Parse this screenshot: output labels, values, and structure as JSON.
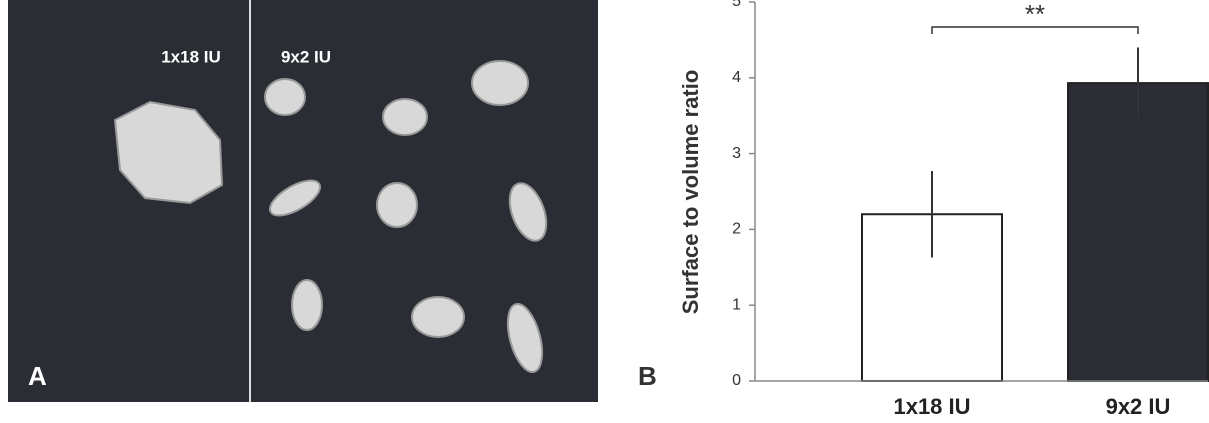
{
  "image_panel": {
    "panel_label": "A",
    "left_label": "1x18 IU",
    "right_label": "9x2 IU"
  },
  "chart_data": {
    "type": "bar",
    "panel_label": "B",
    "ylabel": "Surface to volume ratio",
    "categories": [
      "1x18 IU",
      "9x2 IU"
    ],
    "values": [
      2.2,
      3.93
    ],
    "errors": [
      0.57,
      0.47
    ],
    "colors": [
      "#ffffff",
      "#2b2d35"
    ],
    "ylim": [
      0,
      5
    ],
    "yticks": [
      0,
      1,
      2,
      3,
      4,
      5
    ],
    "annotation": "**"
  }
}
